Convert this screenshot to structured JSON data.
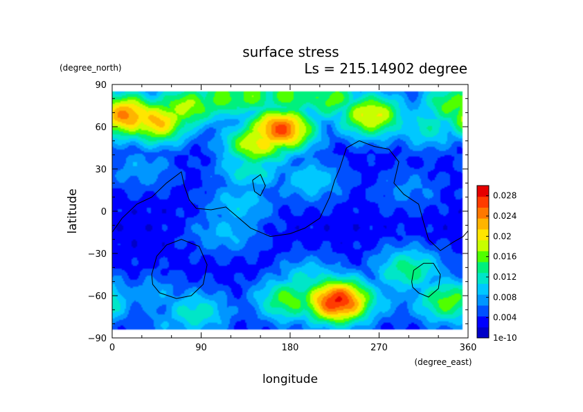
{
  "chart_data": {
    "type": "heatmap",
    "title": "surface stress",
    "subtitle": "Ls = 215.14902 degree",
    "xlabel": "longitude",
    "ylabel": "latitude",
    "xunit": "(degree_east)",
    "yunit": "(degree_north)",
    "xlim": [
      0,
      360
    ],
    "ylim": [
      -90,
      90
    ],
    "xticks": [
      0,
      90,
      180,
      270,
      360
    ],
    "yticks": [
      -90,
      -60,
      -30,
      0,
      30,
      60,
      90
    ],
    "grid": false,
    "colorbar": {
      "min_label": "1e-10",
      "ticks": [
        0.004,
        0.008,
        0.012,
        0.016,
        0.02,
        0.024,
        0.028
      ],
      "tick_labels": [
        "0.004",
        "0.008",
        "0.012",
        "0.016",
        "0.02",
        "0.024",
        "0.028"
      ],
      "range": [
        0,
        0.03
      ],
      "colormap": [
        "#0000c8",
        "#0000ff",
        "#0050ff",
        "#0096ff",
        "#00c8ff",
        "#00e6c8",
        "#00f07d",
        "#50ff00",
        "#c8ff00",
        "#ffe600",
        "#ffb400",
        "#ff7800",
        "#ff3c00",
        "#e60000"
      ]
    },
    "background_value": 0.003,
    "blobs": [
      {
        "lon": 15,
        "lat": 68,
        "value": 0.024
      },
      {
        "lon": 45,
        "lat": 64,
        "value": 0.022
      },
      {
        "lon": 75,
        "lat": 74,
        "value": 0.018
      },
      {
        "lon": 110,
        "lat": 80,
        "value": 0.016
      },
      {
        "lon": 140,
        "lat": 82,
        "value": 0.016
      },
      {
        "lon": 180,
        "lat": 82,
        "value": 0.016
      },
      {
        "lon": 220,
        "lat": 80,
        "value": 0.016
      },
      {
        "lon": 262,
        "lat": 68,
        "value": 0.02
      },
      {
        "lon": 345,
        "lat": 76,
        "value": 0.016
      },
      {
        "lon": 170,
        "lat": 58,
        "value": 0.026
      },
      {
        "lon": 148,
        "lat": 48,
        "value": 0.02
      },
      {
        "lon": 140,
        "lat": 30,
        "value": 0.012
      },
      {
        "lon": 130,
        "lat": 5,
        "value": 0.01
      },
      {
        "lon": 115,
        "lat": -15,
        "value": 0.009
      },
      {
        "lon": 200,
        "lat": 22,
        "value": 0.01
      },
      {
        "lon": 320,
        "lat": 60,
        "value": 0.012
      },
      {
        "lon": 228,
        "lat": -64,
        "value": 0.028
      },
      {
        "lon": 180,
        "lat": -63,
        "value": 0.016
      },
      {
        "lon": 200,
        "lat": -50,
        "value": 0.012
      },
      {
        "lon": 300,
        "lat": -42,
        "value": 0.014
      },
      {
        "lon": 340,
        "lat": -64,
        "value": 0.016
      },
      {
        "lon": 85,
        "lat": -72,
        "value": 0.012
      },
      {
        "lon": 265,
        "lat": -62,
        "value": 0.01
      },
      {
        "lon": 60,
        "lat": -80,
        "value": 0.008
      },
      {
        "lon": 210,
        "lat": -75,
        "value": 0.009
      },
      {
        "lon": 30,
        "lat": 30,
        "value": 0.008
      },
      {
        "lon": 300,
        "lat": 15,
        "value": 0.007
      },
      {
        "lon": 45,
        "lat": -60,
        "value": 0.008
      }
    ],
    "contours": [
      {
        "name": "dichotomy-boundary",
        "points": [
          [
            0,
            -15
          ],
          [
            10,
            -5
          ],
          [
            25,
            5
          ],
          [
            40,
            10
          ],
          [
            55,
            20
          ],
          [
            70,
            28
          ],
          [
            73,
            18
          ],
          [
            78,
            8
          ],
          [
            85,
            2
          ],
          [
            100,
            1
          ],
          [
            115,
            3
          ],
          [
            125,
            -3
          ],
          [
            140,
            -12
          ],
          [
            160,
            -18
          ],
          [
            180,
            -16
          ],
          [
            195,
            -12
          ],
          [
            210,
            -5
          ],
          [
            220,
            10
          ],
          [
            225,
            22
          ],
          [
            230,
            30
          ],
          [
            237,
            45
          ],
          [
            250,
            50
          ],
          [
            265,
            46
          ],
          [
            280,
            44
          ],
          [
            290,
            35
          ],
          [
            285,
            20
          ],
          [
            295,
            12
          ],
          [
            310,
            5
          ],
          [
            315,
            -8
          ],
          [
            320,
            -20
          ],
          [
            332,
            -28
          ],
          [
            345,
            -22
          ],
          [
            355,
            -18
          ],
          [
            360,
            -14
          ]
        ]
      },
      {
        "name": "hellas-basin",
        "points": [
          [
            40,
            -45
          ],
          [
            45,
            -32
          ],
          [
            55,
            -24
          ],
          [
            70,
            -20
          ],
          [
            88,
            -25
          ],
          [
            96,
            -38
          ],
          [
            92,
            -52
          ],
          [
            80,
            -60
          ],
          [
            65,
            -62
          ],
          [
            48,
            -58
          ],
          [
            41,
            -52
          ],
          [
            40,
            -45
          ]
        ]
      },
      {
        "name": "argyre-basin",
        "points": [
          [
            303,
            -50
          ],
          [
            305,
            -42
          ],
          [
            315,
            -37
          ],
          [
            325,
            -37
          ],
          [
            332,
            -45
          ],
          [
            330,
            -55
          ],
          [
            320,
            -61
          ],
          [
            310,
            -58
          ],
          [
            304,
            -54
          ],
          [
            303,
            -50
          ]
        ]
      },
      {
        "name": "small-loop",
        "points": [
          [
            142,
            22
          ],
          [
            150,
            26
          ],
          [
            155,
            18
          ],
          [
            150,
            11
          ],
          [
            144,
            14
          ],
          [
            142,
            22
          ]
        ]
      }
    ]
  }
}
